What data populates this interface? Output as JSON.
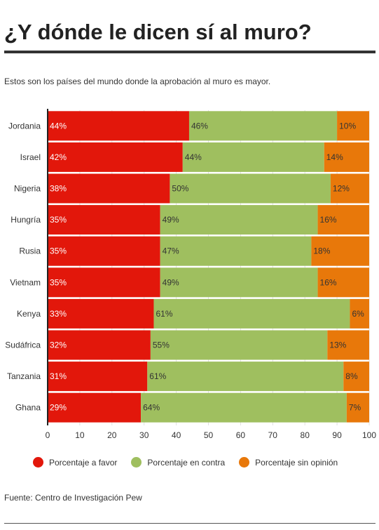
{
  "title": "¿Y dónde le dicen sí al muro?",
  "subtitle": "Estos son los países del mundo donde la aprobación al muro es mayor.",
  "source": "Fuente: Centro de Investigación Pew",
  "colors": {
    "favor": "#e2170b",
    "contra": "#9fbf5f",
    "sin_opinion": "#e8780a",
    "axis": "#222222",
    "grid": "#e0e0e0"
  },
  "chart_data": {
    "type": "bar",
    "orientation": "horizontal",
    "stacked": true,
    "categories": [
      "Jordania",
      "Israel",
      "Nigeria",
      "Hungría",
      "Rusia",
      "Vietnam",
      "Kenya",
      "Sudáfrica",
      "Tanzania",
      "Ghana"
    ],
    "series": [
      {
        "name": "Porcentaje a favor",
        "values": [
          44,
          42,
          38,
          35,
          35,
          35,
          33,
          32,
          31,
          29
        ]
      },
      {
        "name": "Porcentaje en contra",
        "values": [
          46,
          44,
          50,
          49,
          47,
          49,
          61,
          55,
          61,
          64
        ]
      },
      {
        "name": "Porcentaje sin opinión",
        "values": [
          10,
          14,
          12,
          16,
          18,
          16,
          6,
          13,
          8,
          7
        ]
      }
    ],
    "xlim": [
      0,
      100
    ],
    "xticks": [
      "0",
      "10",
      "20",
      "30",
      "40",
      "50",
      "60",
      "70",
      "80",
      "90",
      "100"
    ],
    "value_suffix": "%",
    "grid": true,
    "legend_position": "bottom"
  }
}
